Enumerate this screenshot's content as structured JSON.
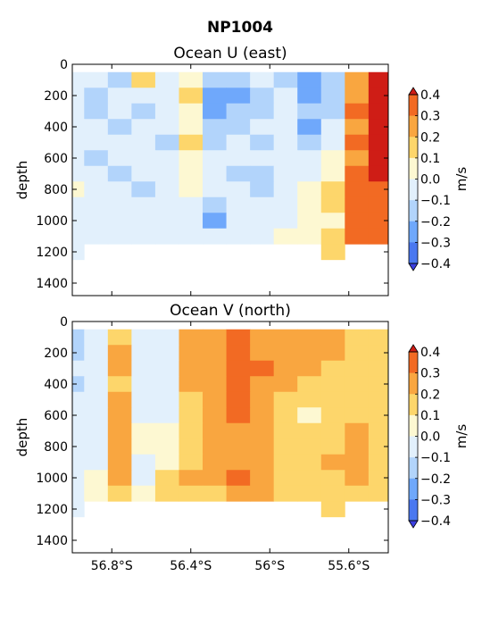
{
  "figure": {
    "title": "NP1004"
  },
  "palette": {
    "levels": [
      -0.4,
      -0.3,
      -0.2,
      -0.1,
      0.0,
      0.1,
      0.2,
      0.3,
      0.4
    ],
    "colors": [
      "#3b3fe0",
      "#4a78f0",
      "#6fa8fb",
      "#b2d4fb",
      "#e2f0fc",
      "#fdf8d2",
      "#fdd66b",
      "#f9a640",
      "#f26a23",
      "#cf1d16"
    ]
  },
  "chart_data": [
    {
      "type": "heatmap",
      "title": "Ocean U (east)",
      "xlabel": "",
      "ylabel": "depth",
      "colorbar_label": "m/s",
      "colorbar_ticks": [
        "0.4",
        "0.3",
        "0.2",
        "0.1",
        "0.0",
        "−0.1",
        "−0.2",
        "−0.3",
        "−0.4"
      ],
      "xlim": [
        -57.0,
        -55.4
      ],
      "ylim": [
        1480,
        0
      ],
      "xticks": [
        -56.8,
        -56.4,
        -56.0,
        -55.6
      ],
      "xticklabels": [],
      "yticks": [
        0,
        200,
        400,
        600,
        800,
        1000,
        1200,
        1400
      ],
      "yticklabels": [
        "0",
        "200",
        "400",
        "600",
        "800",
        "1000",
        "1200",
        "1400"
      ],
      "grid": false,
      "lat": [
        -57.0,
        -56.88,
        -56.76,
        -56.64,
        -56.52,
        -56.4,
        -56.28,
        -56.16,
        -56.04,
        -55.92,
        -55.8,
        -55.68,
        -55.56,
        -55.44
      ],
      "depth": [
        100,
        200,
        300,
        400,
        500,
        600,
        700,
        800,
        900,
        1000,
        1100,
        1200
      ],
      "values": [
        [
          -0.1,
          -0.1,
          -0.2,
          0.1,
          -0.1,
          0.0,
          -0.2,
          -0.2,
          -0.1,
          -0.2,
          -0.3,
          -0.2,
          0.2,
          0.4
        ],
        [
          -0.1,
          -0.2,
          -0.1,
          -0.1,
          -0.1,
          0.1,
          -0.3,
          -0.3,
          -0.2,
          -0.1,
          -0.3,
          -0.2,
          0.2,
          0.4
        ],
        [
          -0.1,
          -0.2,
          -0.1,
          -0.2,
          -0.1,
          0.0,
          -0.3,
          -0.2,
          -0.2,
          -0.1,
          -0.2,
          -0.2,
          0.3,
          0.4
        ],
        [
          -0.1,
          -0.1,
          -0.2,
          -0.1,
          -0.1,
          0.0,
          -0.2,
          -0.2,
          -0.1,
          -0.1,
          -0.3,
          -0.1,
          0.2,
          0.4
        ],
        [
          -0.1,
          -0.1,
          -0.1,
          -0.1,
          -0.2,
          0.1,
          -0.2,
          -0.1,
          -0.2,
          -0.1,
          -0.2,
          -0.1,
          0.3,
          0.4
        ],
        [
          -0.1,
          -0.2,
          -0.1,
          -0.1,
          -0.1,
          0.0,
          -0.1,
          -0.1,
          -0.1,
          -0.1,
          -0.1,
          0.0,
          0.2,
          0.4
        ],
        [
          -0.1,
          -0.1,
          -0.2,
          -0.1,
          -0.1,
          0.0,
          -0.1,
          -0.2,
          -0.2,
          -0.1,
          -0.1,
          0.0,
          0.3,
          0.4
        ],
        [
          0.0,
          -0.1,
          -0.1,
          -0.2,
          -0.1,
          0.0,
          -0.1,
          -0.1,
          -0.2,
          -0.1,
          0.0,
          0.1,
          0.3,
          0.3
        ],
        [
          -0.1,
          -0.1,
          -0.1,
          -0.1,
          -0.1,
          -0.1,
          -0.2,
          -0.1,
          -0.1,
          -0.1,
          0.0,
          0.1,
          0.3,
          0.3
        ],
        [
          -0.1,
          -0.1,
          -0.1,
          -0.1,
          -0.1,
          -0.1,
          -0.3,
          -0.1,
          -0.1,
          -0.1,
          0.0,
          0.0,
          0.3,
          0.3
        ],
        [
          -0.1,
          -0.1,
          -0.1,
          -0.1,
          -0.1,
          -0.1,
          -0.1,
          -0.1,
          -0.1,
          0.0,
          0.0,
          0.1,
          0.3,
          0.3
        ],
        [
          -0.1,
          null,
          null,
          null,
          null,
          null,
          null,
          null,
          null,
          null,
          null,
          0.1,
          null,
          null
        ]
      ]
    },
    {
      "type": "heatmap",
      "title": "Ocean V (north)",
      "xlabel": "",
      "ylabel": "depth",
      "colorbar_label": "m/s",
      "colorbar_ticks": [
        "0.4",
        "0.3",
        "0.2",
        "0.1",
        "0.0",
        "−0.1",
        "−0.2",
        "−0.3",
        "−0.4"
      ],
      "xlim": [
        -57.0,
        -55.4
      ],
      "ylim": [
        1480,
        0
      ],
      "xticks": [
        -56.8,
        -56.4,
        -56.0,
        -55.6
      ],
      "xticklabels": [
        "56.8°S",
        "56.4°S",
        "56°S",
        "55.6°S"
      ],
      "yticks": [
        0,
        200,
        400,
        600,
        800,
        1000,
        1200,
        1400
      ],
      "yticklabels": [
        "0",
        "200",
        "400",
        "600",
        "800",
        "1000",
        "1200",
        "1400"
      ],
      "grid": false,
      "lat": [
        -57.0,
        -56.88,
        -56.76,
        -56.64,
        -56.52,
        -56.4,
        -56.28,
        -56.16,
        -56.04,
        -55.92,
        -55.8,
        -55.68,
        -55.56,
        -55.44
      ],
      "depth": [
        100,
        200,
        300,
        400,
        500,
        600,
        700,
        800,
        900,
        1000,
        1100,
        1200
      ],
      "values": [
        [
          -0.2,
          -0.1,
          0.1,
          -0.1,
          -0.1,
          0.2,
          0.2,
          0.3,
          0.2,
          0.2,
          0.2,
          0.2,
          0.1,
          0.1
        ],
        [
          -0.2,
          -0.1,
          0.2,
          -0.1,
          -0.1,
          0.2,
          0.2,
          0.3,
          0.2,
          0.2,
          0.2,
          0.2,
          0.1,
          0.1
        ],
        [
          -0.1,
          -0.1,
          0.2,
          -0.1,
          -0.1,
          0.2,
          0.2,
          0.3,
          0.3,
          0.2,
          0.2,
          0.1,
          0.1,
          0.1
        ],
        [
          -0.2,
          -0.1,
          0.1,
          -0.1,
          -0.1,
          0.2,
          0.2,
          0.3,
          0.2,
          0.2,
          0.1,
          0.1,
          0.1,
          0.1
        ],
        [
          -0.1,
          -0.1,
          0.2,
          -0.1,
          -0.1,
          0.1,
          0.2,
          0.3,
          0.2,
          0.1,
          0.1,
          0.1,
          0.1,
          0.1
        ],
        [
          -0.1,
          -0.1,
          0.2,
          -0.1,
          -0.1,
          0.1,
          0.2,
          0.3,
          0.2,
          0.1,
          0.0,
          0.1,
          0.1,
          0.1
        ],
        [
          -0.1,
          -0.1,
          0.2,
          0.0,
          0.0,
          0.1,
          0.2,
          0.2,
          0.2,
          0.1,
          0.1,
          0.1,
          0.2,
          0.1
        ],
        [
          -0.1,
          -0.1,
          0.2,
          0.0,
          0.0,
          0.1,
          0.2,
          0.2,
          0.2,
          0.1,
          0.1,
          0.1,
          0.2,
          0.1
        ],
        [
          -0.1,
          -0.1,
          0.2,
          -0.1,
          0.0,
          0.1,
          0.2,
          0.2,
          0.2,
          0.1,
          0.1,
          0.2,
          0.2,
          0.1
        ],
        [
          -0.1,
          0.0,
          0.2,
          -0.1,
          0.1,
          0.2,
          0.2,
          0.3,
          0.2,
          0.1,
          0.1,
          0.1,
          0.2,
          0.1
        ],
        [
          -0.1,
          0.0,
          0.1,
          0.0,
          0.1,
          0.1,
          0.1,
          0.2,
          0.2,
          0.1,
          0.1,
          0.1,
          0.1,
          0.1
        ],
        [
          -0.1,
          null,
          null,
          null,
          null,
          null,
          null,
          null,
          null,
          null,
          null,
          0.1,
          null,
          null
        ]
      ]
    }
  ]
}
